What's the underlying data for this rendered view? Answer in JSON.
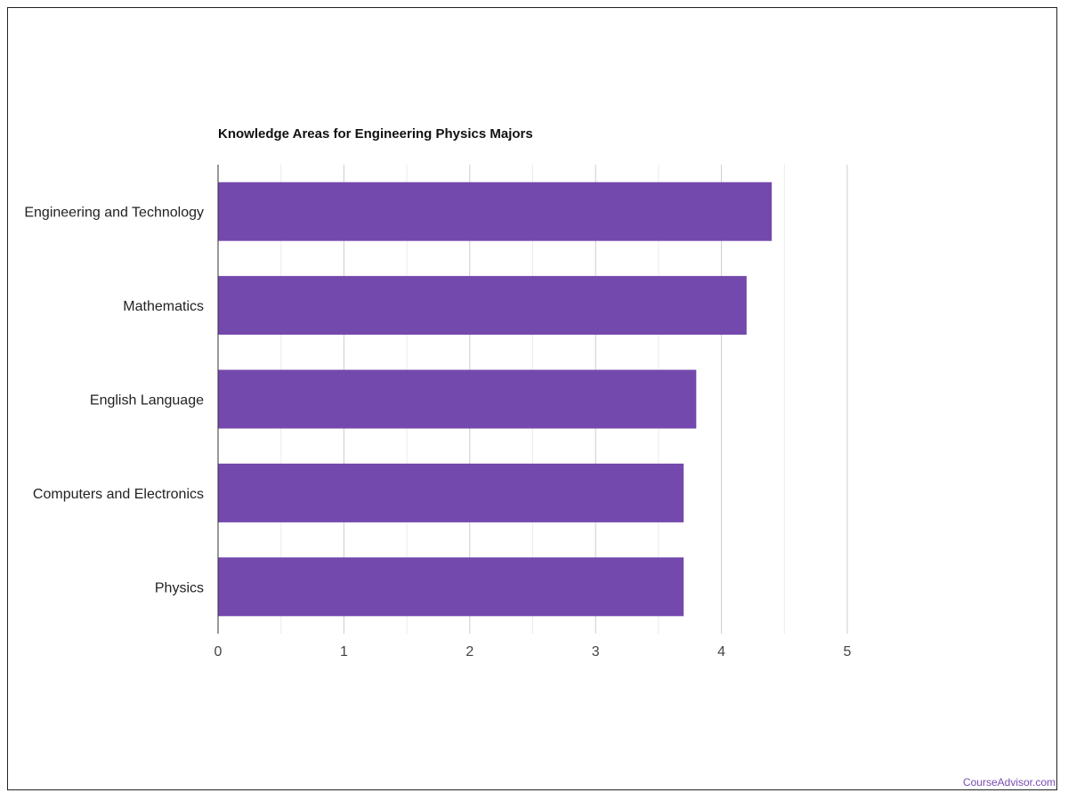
{
  "chart_data": {
    "type": "bar",
    "orientation": "horizontal",
    "title": "Knowledge Areas for Engineering Physics Majors",
    "categories": [
      "Engineering and Technology",
      "Mathematics",
      "English Language",
      "Computers and Electronics",
      "Physics"
    ],
    "values": [
      4.4,
      4.2,
      3.8,
      3.7,
      3.7
    ],
    "xlim": [
      0,
      5
    ],
    "x_ticks": [
      0,
      1,
      2,
      3,
      4,
      5
    ],
    "grid": true,
    "legend": "none",
    "bar_color": "#7449ad",
    "grid_major_color": "#cccccc",
    "grid_minor_color": "#ebebeb"
  },
  "watermark": "CourseAdvisor.com"
}
